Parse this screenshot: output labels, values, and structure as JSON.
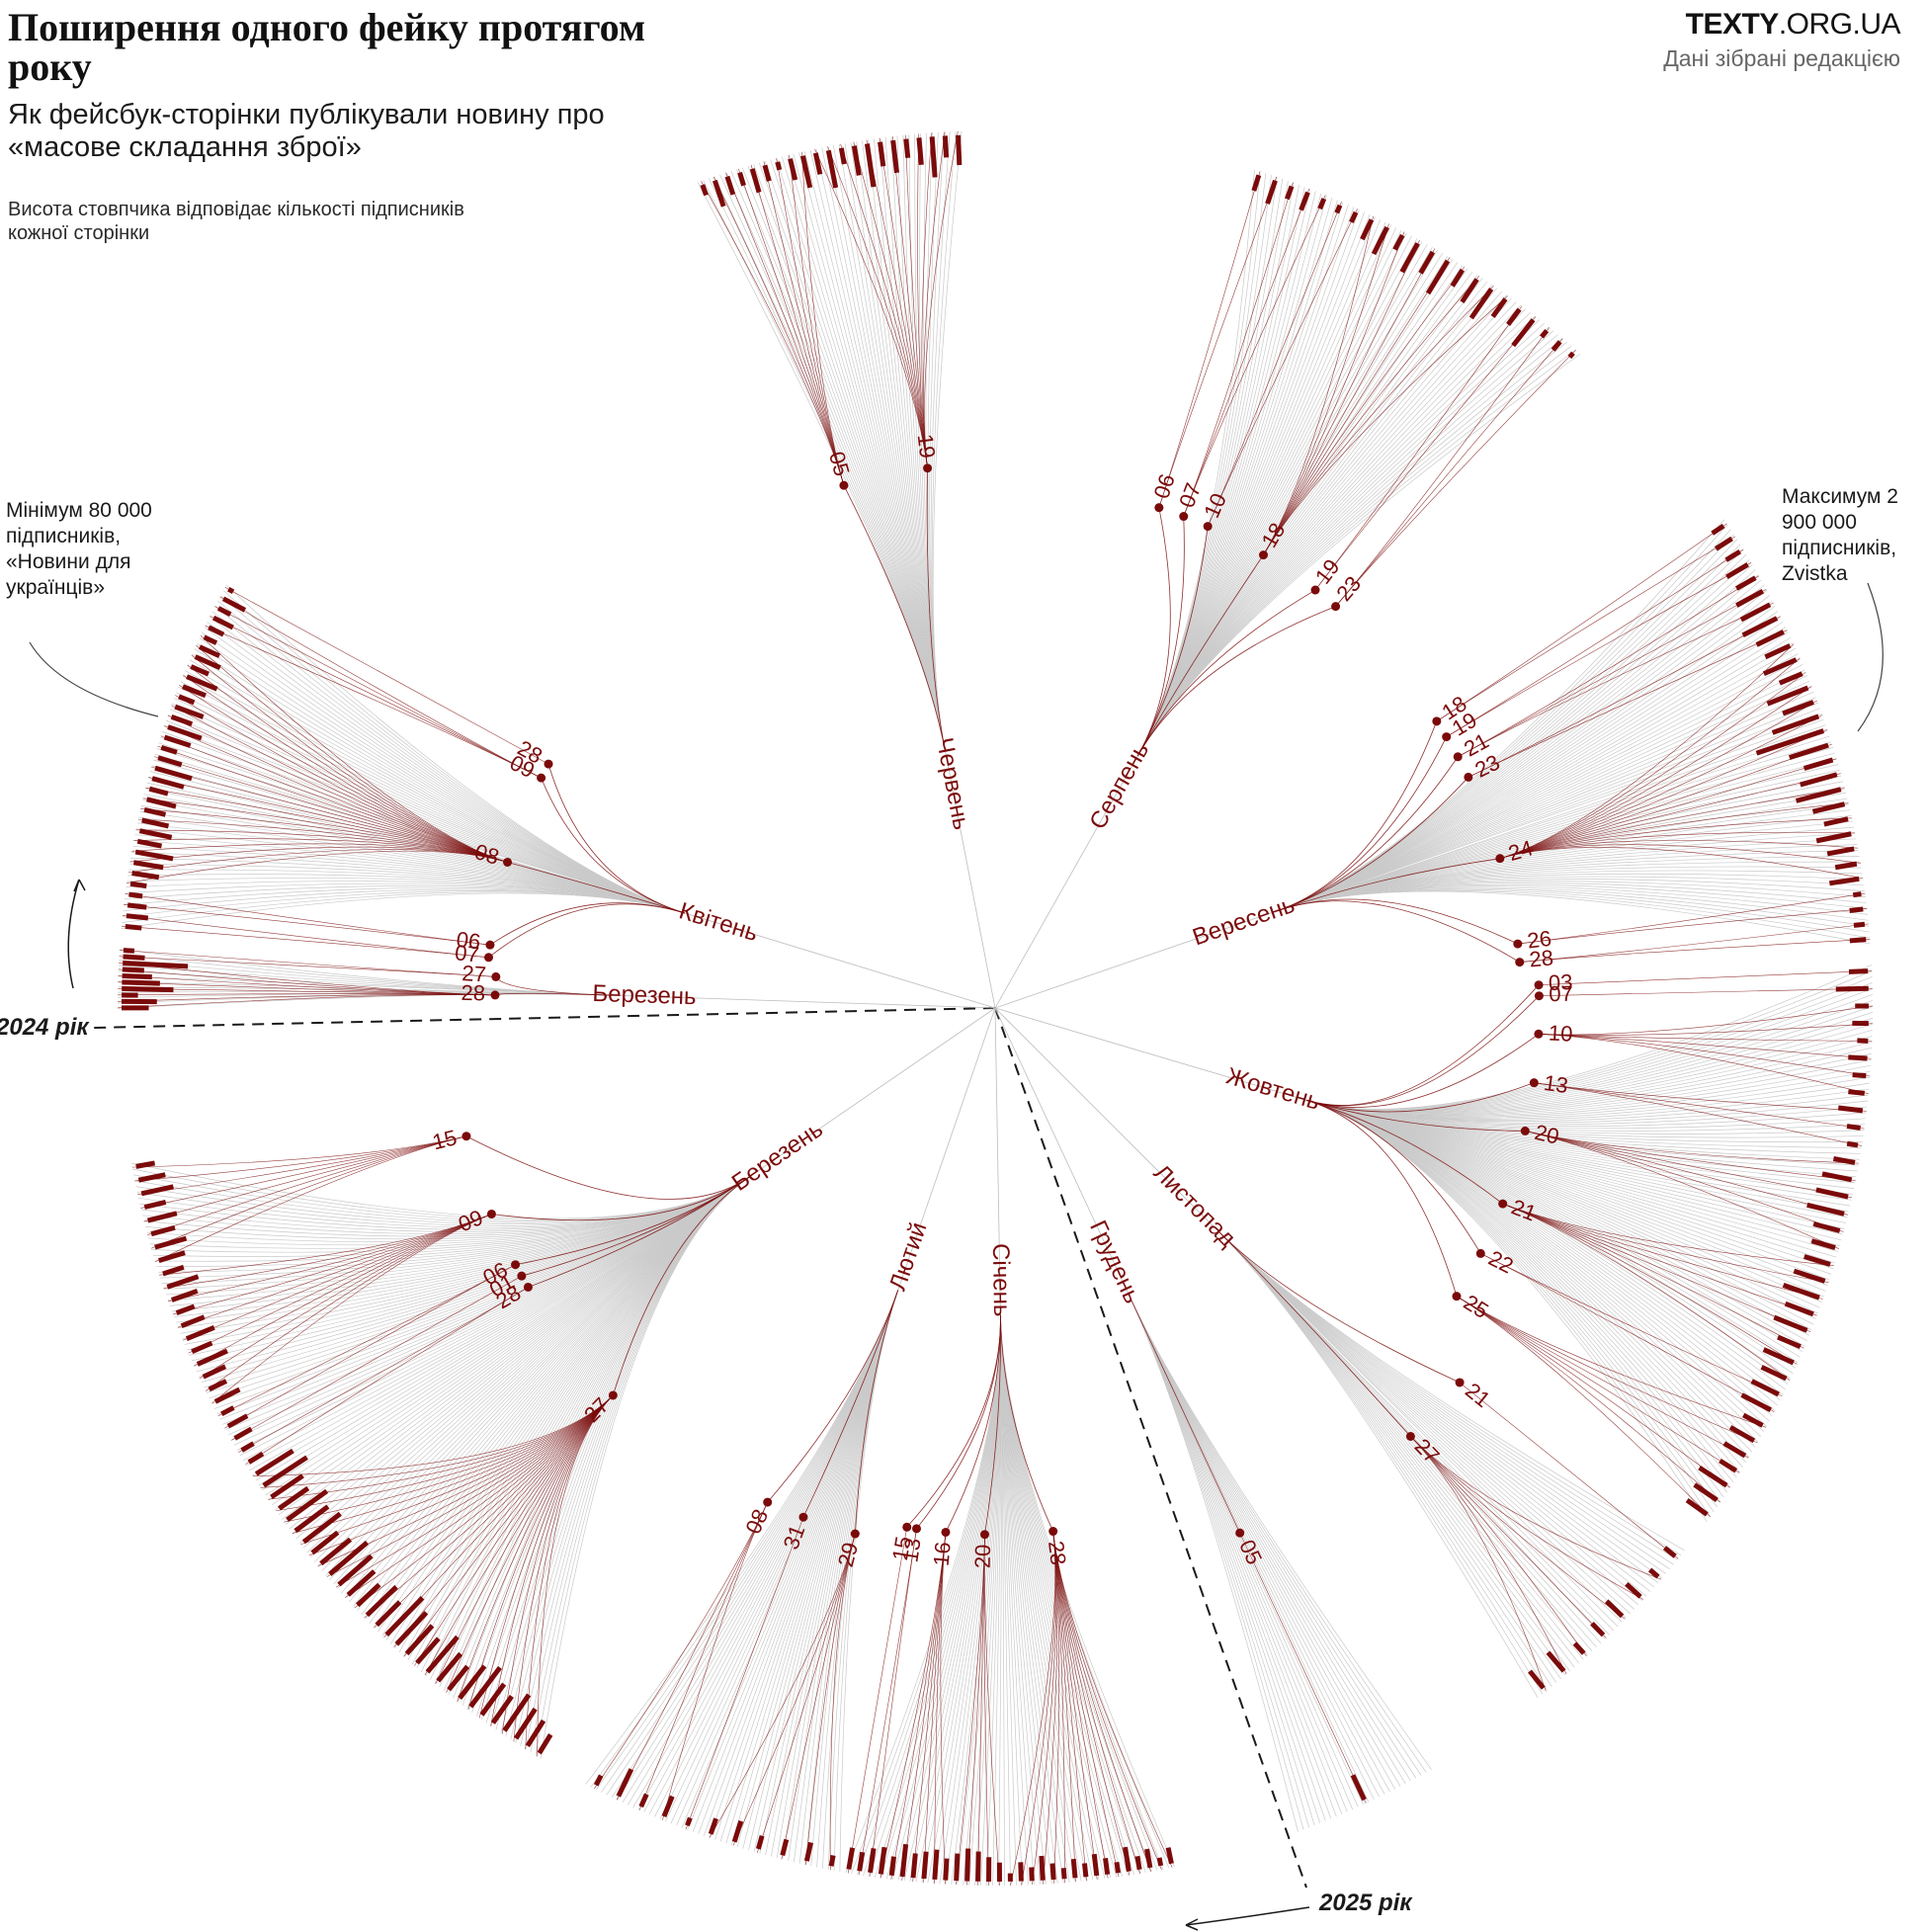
{
  "header": {
    "title": "Поширення одного фейку протягом року",
    "subtitle": "Як фейсбук-сторінки публікували новину про «масове складання зброї»",
    "note": "Висота стовпчика відповідає кількості підписників кожної сторінки",
    "brand_bold": "TEXTY",
    "brand_rest": ".ORG.UA",
    "source": "Дані зібрані редакцією"
  },
  "annotations": {
    "min": "Мінімум 80 000 підписників, «Новини для українців»",
    "max": "Максимум 2 900 000 підписників, Zvistka"
  },
  "years": {
    "start": "2024 рік",
    "end": "2025 рік"
  },
  "colors": {
    "accent": "#7b0a0a",
    "grey_line": "#c9c9c9",
    "text": "#1a1a1a",
    "muted": "#666666"
  },
  "chart_data": {
    "type": "radial-tree",
    "subscribers_min": 80000,
    "subscribers_max": 2900000,
    "months": [
      {
        "key": "mar24",
        "label": "Березень",
        "days": [
          {
            "label": "28",
            "posts": [
              50,
              65,
              30,
              95,
              70,
              55,
              40,
              120
            ]
          },
          {
            "label": "27",
            "posts": [
              40,
              20
            ]
          }
        ]
      },
      {
        "key": "apr24",
        "label": "Квітень",
        "days": [
          {
            "label": "07",
            "posts": [
              30,
              40
            ]
          },
          {
            "label": "06",
            "posts": [
              35,
              25
            ]
          },
          {
            "label": "08",
            "posts": [
              30,
              50,
              55,
              70,
              45,
              60,
              50,
              40,
              55,
              35,
              60,
              70,
              45,
              30,
              50,
              65,
              40,
              55,
              30,
              45,
              60,
              35,
              50,
              40,
              25
            ]
          },
          {
            "label": "09",
            "posts": [
              30,
              40,
              25,
              45
            ]
          },
          {
            "label": "28",
            "posts": [
              10
            ]
          }
        ]
      },
      {
        "key": "jun24",
        "label": "Червень",
        "days": [
          {
            "label": "05",
            "posts": [
              20,
              50,
              35,
              25,
              45,
              30,
              15,
              40,
              60
            ]
          },
          {
            "label": "19",
            "posts": [
              40,
              70,
              30,
              55,
              80,
              45,
              60,
              35,
              50,
              75,
              40,
              55
            ]
          }
        ]
      },
      {
        "key": "aug24",
        "label": "Серпень",
        "days": [
          {
            "label": "06",
            "posts": [
              30,
              45
            ]
          },
          {
            "label": "07",
            "posts": [
              25,
              35,
              20
            ]
          },
          {
            "label": "10",
            "posts": [
              15,
              20
            ]
          },
          {
            "label": "18",
            "posts": [
              40,
              55,
              30,
              60,
              45,
              70,
              35,
              50,
              65,
              40
            ]
          },
          {
            "label": "19",
            "posts": [
              35,
              60
            ]
          },
          {
            "label": "23",
            "posts": [
              15,
              20,
              10
            ]
          }
        ]
      },
      {
        "key": "sep24",
        "label": "Вересень",
        "days": [
          {
            "label": "18",
            "posts": [
              25,
              35
            ]
          },
          {
            "label": "19",
            "posts": [
              30,
              45
            ]
          },
          {
            "label": "21",
            "posts": [
              40,
              55,
              60
            ]
          },
          {
            "label": "23",
            "posts": [
              70,
              55
            ]
          },
          {
            "label": "24",
            "posts": [
              50,
              65,
              45,
              80,
              60,
              90,
              130,
              75,
              55,
              70,
              85,
              60,
              45,
              65,
              50,
              40,
              55
            ]
          },
          {
            "label": "26",
            "posts": [
              15,
              25
            ]
          },
          {
            "label": "28",
            "posts": [
              20,
              30
            ]
          }
        ]
      },
      {
        "key": "oct24",
        "label": "Жовтень",
        "days": [
          {
            "label": "03",
            "posts": [
              35
            ]
          },
          {
            "label": "07",
            "posts": [
              60
            ]
          },
          {
            "label": "10",
            "posts": [
              25,
              30,
              20,
              35,
              25,
              30
            ]
          },
          {
            "label": "13",
            "posts": [
              45,
              25,
              20
            ]
          },
          {
            "label": "20",
            "posts": [
              40,
              55,
              60,
              70,
              50,
              45
            ]
          },
          {
            "label": "21",
            "posts": [
              50,
              60,
              70,
              55,
              65,
              45,
              60,
              50
            ]
          },
          {
            "label": "22",
            "posts": [
              55,
              60
            ]
          },
          {
            "label": "25",
            "posts": [
              40,
              50,
              45,
              35,
              60,
              50,
              45
            ]
          }
        ]
      },
      {
        "key": "nov24",
        "label": "Листопад",
        "days": [
          {
            "label": "21",
            "posts": [
              25
            ]
          },
          {
            "label": "27",
            "posts": [
              20,
              35,
              40,
              30,
              25,
              45,
              40
            ]
          }
        ]
      },
      {
        "key": "dec24",
        "label": "Грудень",
        "days": [
          {
            "label": "05",
            "posts": [
              50
            ]
          }
        ]
      },
      {
        "key": "jan25",
        "label": "Січень",
        "days": [
          {
            "label": "28",
            "posts": [
              30,
              15,
              35,
              25,
              45,
              20,
              30,
              40,
              25,
              35,
              20,
              30,
              45,
              25,
              35,
              15
            ]
          },
          {
            "label": "20",
            "posts": [
              35,
              45,
              55,
              60,
              50
            ]
          },
          {
            "label": "16",
            "posts": [
              40,
              55,
              50,
              45,
              60,
              35,
              50
            ]
          },
          {
            "label": "13",
            "posts": [
              45,
              35
            ]
          },
          {
            "label": "15",
            "posts": [
              40
            ]
          }
        ]
      },
      {
        "key": "feb25",
        "label": "Лютий",
        "days": [
          {
            "label": "29",
            "posts": [
              20,
              35,
              30,
              25,
              40,
              30
            ]
          },
          {
            "label": "31",
            "posts": [
              15
            ]
          },
          {
            "label": "08",
            "posts": [
              40,
              25,
              55,
              20
            ]
          }
        ]
      },
      {
        "key": "mar25",
        "label": "Березень",
        "days": [
          {
            "label": "27",
            "posts": [
              40,
              55,
              65,
              80,
              60,
              70,
              90,
              75,
              55,
              65,
              85,
              60,
              70,
              80,
              95,
              60,
              75,
              55,
              65,
              80,
              90,
              70,
              60,
              85,
              75,
              90,
              65,
              70,
              95,
              80
            ]
          },
          {
            "label": "28",
            "posts": [
              30,
              25
            ]
          },
          {
            "label": "01",
            "posts": [
              35
            ]
          },
          {
            "label": "06",
            "posts": [
              40,
              25
            ]
          },
          {
            "label": "09",
            "posts": [
              50,
              35,
              45,
              60,
              40,
              55,
              45,
              35,
              50,
              60,
              40
            ]
          },
          {
            "label": "15",
            "posts": [
              50,
              60,
              45,
              55,
              40,
              60,
              50,
              35
            ]
          }
        ]
      }
    ]
  }
}
